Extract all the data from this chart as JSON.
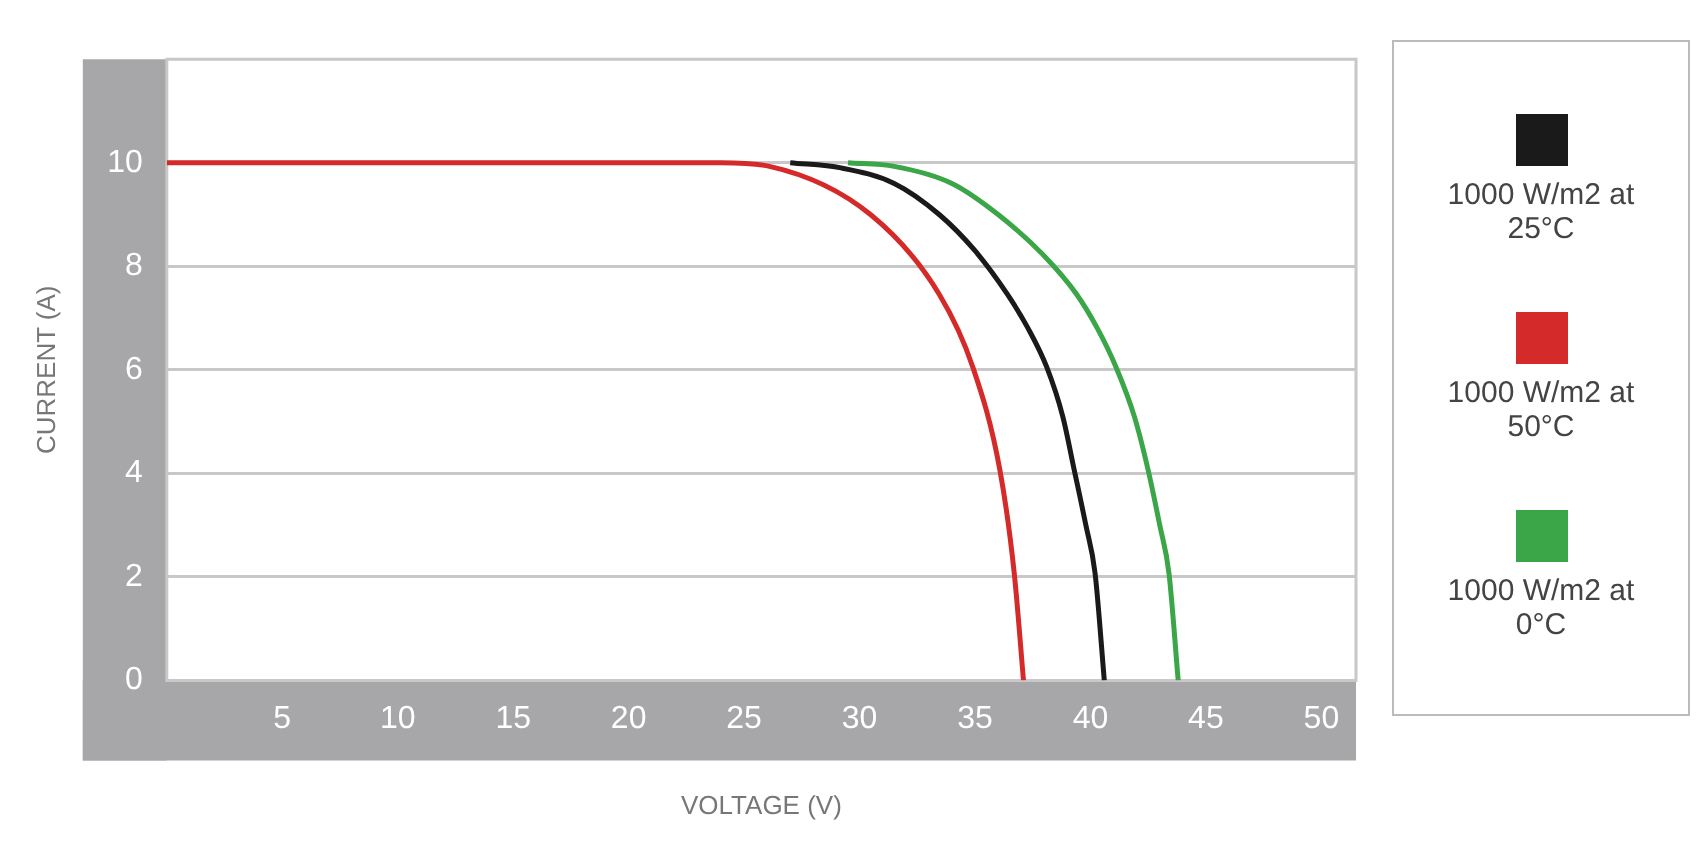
{
  "chart_data": {
    "type": "line",
    "xlabel": "VOLTAGE (V)",
    "ylabel": "CURRENT (A)",
    "xlim": [
      0,
      51.5
    ],
    "ylim": [
      0,
      12
    ],
    "xticks": [
      5,
      10,
      15,
      20,
      25,
      30,
      35,
      40,
      45,
      50
    ],
    "yticks": [
      0,
      2,
      4,
      6,
      8,
      10
    ],
    "grid": "y",
    "legend": "right",
    "marker": "none",
    "line_style": "solid",
    "series": [
      {
        "name": "1000 W/m2 at 25°C",
        "color": "#1a1a1a",
        "x": [
          27,
          29.2,
          31.5,
          33.45,
          35,
          36.4,
          37.3,
          38.1,
          38.8,
          39.3,
          39.8,
          40.2,
          40.6
        ],
        "values": [
          10,
          9.9,
          9.6,
          9.0,
          8.3,
          7.46,
          6.8,
          6.06,
          5.1,
          4.06,
          3.0,
          2.07,
          0
        ]
      },
      {
        "name": "1000 W/m2 at 50°C",
        "color": "#d42a2a",
        "x": [
          0,
          20,
          24,
          26.1,
          30.5,
          33.45,
          34.9,
          36.08,
          36.7,
          37.1
        ],
        "values": [
          10,
          10,
          10,
          9.93,
          8.99,
          7.46,
          6.06,
          4.06,
          2.07,
          0
        ]
      },
      {
        "name": "1000 W/m2 at 0°C",
        "color": "#3aa648",
        "x": [
          29.5,
          31.5,
          34,
          36,
          38,
          39.4,
          40.3,
          41.1,
          41.9,
          42.5,
          43,
          43.4,
          43.8
        ],
        "values": [
          10,
          9.93,
          9.6,
          9.0,
          8.2,
          7.46,
          6.8,
          6.06,
          5.1,
          4.06,
          3.0,
          2.07,
          0
        ]
      }
    ]
  }
}
